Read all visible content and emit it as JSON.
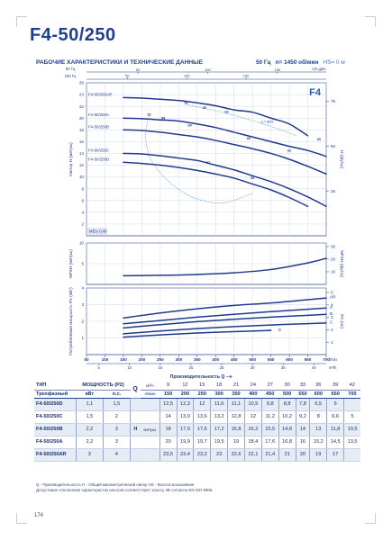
{
  "page": {
    "title": "F4-50/250",
    "subheading": "РАБОЧИЕ ХАРАКТЕРИСТИКИ И ТЕХНИЧЕСКИЕ ДАННЫЕ",
    "freq": "50 Гц",
    "speed": "n= 1450 об/мин",
    "hs": "HS= 0 м",
    "page_number": "174",
    "footnote_line1": "Q - Производительность   H - Общий манометрический напор   HS - Высота всасывания",
    "footnote_line2": "Допустимое отклонение характеристик насосов соответствует классу 3B согласно EN ISO 9906."
  },
  "chart_data": [
    {
      "type": "line",
      "panel": "head",
      "badge": "F4",
      "ylabel": "Напор H (метры)",
      "ylabel_right": "H (футы)",
      "top_axis_labels": [
        "50 Гц",
        "100 Гц",
        "US gpm"
      ],
      "top_axis_ticks_1": [
        {
          "v": 50,
          "label": "50"
        },
        {
          "v": 100,
          "label": "100"
        },
        {
          "v": 150,
          "label": "150"
        }
      ],
      "top_axis_ticks_2": [
        {
          "v": 50,
          "label": "50"
        },
        {
          "v": 100,
          "label": "100"
        },
        {
          "v": 150,
          "label": "150"
        }
      ],
      "ylim": [
        0,
        26
      ],
      "yticks": [
        2,
        4,
        6,
        8,
        10,
        12,
        14,
        16,
        18,
        20,
        22,
        24,
        26
      ],
      "y2ticks": [
        {
          "v": 22.86,
          "label": "75"
        },
        {
          "v": 15.24,
          "label": "50"
        },
        {
          "v": 7.62,
          "label": "25"
        }
      ],
      "x": [
        150,
        200,
        250,
        300,
        350,
        400,
        450,
        500,
        550,
        600,
        650,
        700
      ],
      "series": [
        {
          "name": "F4-50/250AR",
          "values": [
            23.5,
            23.4,
            23.2,
            23.0,
            22.6,
            22.1,
            21.4,
            21.0,
            20.0,
            19.0,
            17.0,
            null
          ]
        },
        {
          "name": "F4-50/250A",
          "values": [
            20.0,
            19.9,
            19.7,
            19.5,
            19.0,
            18.4,
            17.6,
            16.8,
            16.0,
            15.2,
            14.5,
            13.5
          ]
        },
        {
          "name": "F4-50/250B",
          "values": [
            18.0,
            17.9,
            17.6,
            17.2,
            16.8,
            16.2,
            15.5,
            14.8,
            14.0,
            13.0,
            11.8,
            10.5
          ]
        },
        {
          "name": "F4-50/250C",
          "values": [
            14.0,
            13.9,
            13.6,
            13.2,
            12.8,
            12.0,
            11.2,
            10.2,
            9.2,
            8.0,
            6.6,
            5.0
          ]
        },
        {
          "name": "F4-50/250D",
          "values": [
            12.5,
            12.3,
            12.0,
            11.6,
            11.1,
            10.5,
            9.8,
            8.8,
            7.8,
            6.5,
            5.0,
            null
          ]
        }
      ],
      "efficiency_labels": [
        {
          "label": "52",
          "x": 220,
          "y": 20.4
        },
        {
          "label": "58",
          "x": 258,
          "y": 19.8
        },
        {
          "label": "60",
          "x": 330,
          "y": 18.6
        },
        {
          "label": "63",
          "x": 430,
          "y": 20.9
        },
        {
          "label": "60",
          "x": 490,
          "y": 16.4
        },
        {
          "label": "63",
          "x": 680,
          "y": 16.2
        },
        {
          "label": "62",
          "x": 600,
          "y": 14.3
        },
        {
          "label": "57",
          "x": 380,
          "y": 12.2
        },
        {
          "label": "54",
          "x": 500,
          "y": 9.6
        },
        {
          "label": "56",
          "x": 320,
          "y": 22.4
        },
        {
          "label": "60",
          "x": 370,
          "y": 21.6
        }
      ],
      "efficiency_legend": "η = 60%",
      "impeller_note": "MEI≥ 0.40"
    },
    {
      "type": "line",
      "panel": "npsh",
      "ylabel": "NPSH (метры)",
      "ylabel_right": "NPSH (футы)",
      "ylim": [
        0,
        10
      ],
      "yticks": [
        5,
        10
      ],
      "y2ticks": [
        {
          "v": 3.05,
          "label": "10"
        },
        {
          "v": 6.1,
          "label": "20"
        },
        {
          "v": 9.14,
          "label": "30"
        }
      ],
      "x": [
        150,
        250,
        350,
        450,
        550,
        650,
        700
      ],
      "series": [
        {
          "name": "NPSH",
          "values": [
            2.1,
            2.2,
            2.4,
            2.8,
            3.6,
            5.2,
            6.3
          ]
        }
      ]
    },
    {
      "type": "line",
      "panel": "power",
      "ylabel": "Потребляемая мощность P2 (кВт)",
      "ylabel_right": "P2 (лс)",
      "ylim": [
        0,
        4
      ],
      "yticks": [
        1,
        2,
        3,
        4
      ],
      "y2ticks": [
        {
          "v": 0.746,
          "label": "1"
        },
        {
          "v": 1.49,
          "label": "2"
        },
        {
          "v": 2.24,
          "label": "3"
        },
        {
          "v": 2.98,
          "label": "4"
        },
        {
          "v": 3.73,
          "label": "5"
        }
      ],
      "x": [
        150,
        250,
        350,
        450,
        550,
        650,
        700
      ],
      "series": [
        {
          "name": "AR",
          "values": [
            2.2,
            2.5,
            2.75,
            2.95,
            3.1,
            3.3,
            3.4
          ]
        },
        {
          "name": "A",
          "values": [
            1.85,
            2.05,
            2.25,
            2.42,
            2.58,
            2.72,
            2.8
          ]
        },
        {
          "name": "B",
          "values": [
            1.6,
            1.8,
            1.98,
            2.12,
            2.25,
            2.36,
            2.42
          ]
        },
        {
          "name": "C",
          "values": [
            1.25,
            1.42,
            1.56,
            1.68,
            1.78,
            1.86,
            1.9
          ]
        },
        {
          "name": "D",
          "values": [
            1.05,
            1.18,
            1.3,
            1.38,
            1.45,
            null,
            null
          ]
        }
      ],
      "x_axis": {
        "xlim": [
          50,
          700
        ],
        "ticks_lmin": [
          50,
          100,
          150,
          200,
          250,
          300,
          350,
          400,
          450,
          500,
          550,
          600,
          650,
          700
        ],
        "unit_lmin": "l/min",
        "ticks_m3h": [
          5,
          10,
          15,
          20,
          25,
          30,
          35,
          40
        ],
        "unit_m3h": "m³/h",
        "xlabel": "Производительность Q"
      }
    }
  ],
  "table": {
    "header_type": "ТИП",
    "header_power": "МОЩНОСТЬ (P2)",
    "q_label": "Q",
    "q_unit_m3h": "м³/ч",
    "q_unit_lmin": "л/мин",
    "q_m3h": [
      "9",
      "12",
      "15",
      "18",
      "21",
      "24",
      "27",
      "30",
      "33",
      "36",
      "39",
      "42"
    ],
    "q_lmin": [
      "150",
      "200",
      "250",
      "300",
      "350",
      "400",
      "450",
      "500",
      "550",
      "600",
      "650",
      "700"
    ],
    "subheader_type": "Трехфазный",
    "kw": "кВт",
    "hp": "л.с.",
    "h_label": "H",
    "h_unit": "метры",
    "rows": [
      {
        "type": "F4-50/250D",
        "kw": "1,1",
        "hp": "1,5",
        "values": [
          "12,5",
          "12,3",
          "12",
          "11,6",
          "11,1",
          "10,5",
          "9,8",
          "8,8",
          "7,8",
          "6,5",
          "5",
          ""
        ]
      },
      {
        "type": "F4-50/250C",
        "kw": "1,5",
        "hp": "2",
        "values": [
          "14",
          "13,9",
          "13,6",
          "13,2",
          "12,8",
          "12",
          "11,2",
          "10,2",
          "9,2",
          "8",
          "6,6",
          "5"
        ]
      },
      {
        "type": "F4-50/250B",
        "kw": "2,2",
        "hp": "3",
        "values": [
          "18",
          "17,9",
          "17,6",
          "17,2",
          "16,8",
          "16,2",
          "15,5",
          "14,8",
          "14",
          "13",
          "11,8",
          "10,5"
        ]
      },
      {
        "type": "F4-50/250A",
        "kw": "2,2",
        "hp": "3",
        "values": [
          "20",
          "19,9",
          "19,7",
          "19,5",
          "19",
          "18,4",
          "17,6",
          "16,8",
          "16",
          "15,2",
          "14,5",
          "13,5"
        ]
      },
      {
        "type": "F4-50/250AR",
        "kw": "3",
        "hp": "4",
        "values": [
          "23,5",
          "23,4",
          "23,2",
          "23",
          "22,6",
          "22,1",
          "21,4",
          "21",
          "20",
          "19",
          "17",
          ""
        ]
      }
    ]
  },
  "colors": {
    "primary": "#1f3e8f",
    "curve": "#1e3a8c",
    "grid": "#c7cfe3",
    "row_alt": "#e6ecf6",
    "efficiency": "#3f8fd0"
  }
}
